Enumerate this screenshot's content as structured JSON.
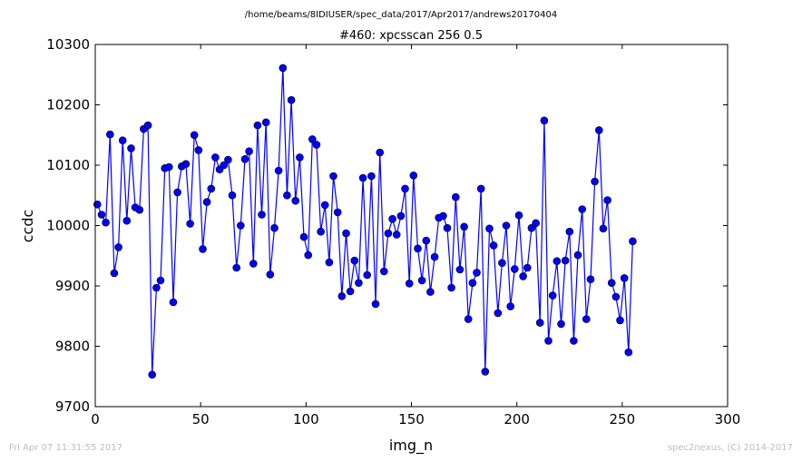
{
  "footer": {
    "timestamp": "Fri Apr 07 11:31:55 2017",
    "credit": "spec2nexus, (C) 2014-2017"
  },
  "chart_data": {
    "type": "line",
    "subtitle": "/home/beams/8IDIUSER/spec_data/2017/Apr2017/andrews20170404",
    "title": "#460: xpcsscan 256 0.5",
    "xlabel": "img_n",
    "ylabel": "ccdc",
    "xlim": [
      0,
      300
    ],
    "ylim": [
      9700,
      10300
    ],
    "xticks": [
      0,
      50,
      100,
      150,
      200,
      250,
      300
    ],
    "yticks": [
      9700,
      9800,
      9900,
      10000,
      10100,
      10200,
      10300
    ],
    "grid": false,
    "line_color": "#0000ff",
    "marker": "circle",
    "series": [
      {
        "x": [
          1,
          3,
          5,
          7,
          9,
          11,
          13,
          15,
          17,
          19,
          21,
          23,
          25,
          27,
          29,
          31,
          33,
          35,
          37,
          39,
          41,
          43,
          45,
          47,
          49,
          51,
          53,
          55,
          57,
          59,
          61,
          63,
          65,
          67,
          69,
          71,
          73,
          75,
          77,
          79,
          81,
          83,
          85,
          87,
          89,
          91,
          93,
          95,
          97,
          99,
          101,
          103,
          105,
          107,
          109,
          111,
          113,
          115,
          117,
          119,
          121,
          123,
          125,
          127,
          129,
          131,
          133,
          135,
          137,
          139,
          141,
          143,
          145,
          147,
          149,
          151,
          153,
          155,
          157,
          159,
          161,
          163,
          165,
          167,
          169,
          171,
          173,
          175,
          177,
          179,
          181,
          183,
          185,
          187,
          189,
          191,
          193,
          195,
          197,
          199,
          201,
          203,
          205,
          207,
          209,
          211,
          213,
          215,
          217,
          219,
          221,
          223,
          225,
          227,
          229,
          231,
          233,
          235,
          237,
          239,
          241,
          243,
          245,
          247,
          249,
          251,
          253,
          255
        ],
        "y": [
          10035,
          10018,
          10005,
          10151,
          9921,
          9964,
          10141,
          10008,
          10128,
          10030,
          10026,
          10160,
          10166,
          9753,
          9897,
          9909,
          10095,
          10097,
          9873,
          10055,
          10098,
          10102,
          10003,
          10150,
          10125,
          9961,
          10039,
          10061,
          10113,
          10093,
          10100,
          10109,
          10050,
          9930,
          10000,
          10110,
          10123,
          9937,
          10166,
          10018,
          10171,
          9919,
          9996,
          10091,
          10261,
          10050,
          10208,
          10041,
          10113,
          9981,
          9951,
          10143,
          10134,
          9990,
          10034,
          9939,
          10082,
          10022,
          9883,
          9987,
          9891,
          9942,
          9905,
          10079,
          9918,
          10082,
          9870,
          10121,
          9924,
          9987,
          10011,
          9985,
          10016,
          10061,
          9904,
          10083,
          9962,
          9909,
          9975,
          9890,
          9948,
          10013,
          10016,
          9996,
          9897,
          10047,
          9927,
          9998,
          9845,
          9905,
          9922,
          10061,
          9758,
          9995,
          9967,
          9855,
          9938,
          10000,
          9866,
          9928,
          10017,
          9916,
          9930,
          9996,
          10004,
          9839,
          10174,
          9809,
          9884,
          9941,
          9837,
          9942,
          9990,
          9809,
          9951,
          10027,
          9845,
          9911,
          10073,
          10158,
          9995,
          10042,
          9905,
          9882,
          9843,
          9913,
          9790,
          9974
        ]
      }
    ]
  }
}
